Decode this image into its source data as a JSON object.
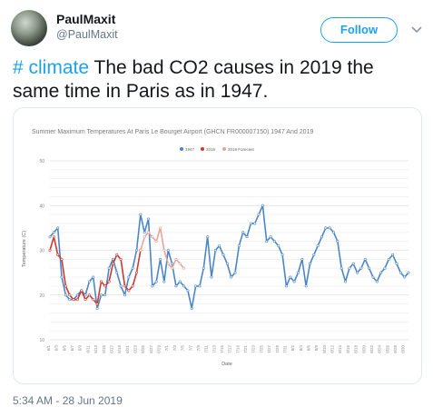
{
  "user": {
    "name": "PaulMaxit",
    "handle": "@PaulMaxit"
  },
  "follow_label": "Follow",
  "tweet": {
    "hashtag": "# climate",
    "text": " The bad CO2 causes in 2019 the same time in Paris as in 1947."
  },
  "timestamp": "5:34 AM - 28 Jun 2019",
  "icons": {
    "avatar": "profile-photo",
    "menu": "chevron-down-icon"
  },
  "colors": {
    "accent": "#1da1f2",
    "series_1947": "#4a86c8",
    "series_2019": "#cc3b2f",
    "series_forecast": "#e8a39b"
  },
  "chart_data": {
    "type": "line",
    "title": "Summer Maximum Temperatures At Paris Le Bourget Airport (GHCN FR000007150) 1947 And 2019",
    "xlabel": "Date",
    "ylabel": "Temperature (C)",
    "ylim": [
      10,
      50
    ],
    "yticks": [
      10,
      20,
      30,
      40,
      50
    ],
    "grid": true,
    "legend_position": "top-center",
    "xticks": [
      "6/1",
      "6/3",
      "6/5",
      "6/7",
      "6/9",
      "6/11",
      "6/13",
      "6/15",
      "6/17",
      "6/19",
      "6/21",
      "6/23",
      "6/25",
      "6/27",
      "6/29",
      "7/1",
      "7/3",
      "7/5",
      "7/7",
      "7/9",
      "7/11",
      "7/13",
      "7/15",
      "7/17",
      "7/19",
      "7/21",
      "7/23",
      "7/25",
      "7/27",
      "7/29",
      "7/31",
      "8/2",
      "8/4",
      "8/6",
      "8/8",
      "8/10",
      "8/12",
      "8/14",
      "8/16",
      "8/18",
      "8/20",
      "8/22",
      "8/24",
      "8/26",
      "8/28",
      "8/30"
    ],
    "series": [
      {
        "name": "1947",
        "color": "#4a86c8",
        "start_day": 0,
        "values": [
          33,
          34,
          35,
          24,
          20,
          19,
          19,
          20,
          21,
          20,
          23,
          24,
          17,
          20,
          20,
          26,
          28,
          25,
          22,
          20,
          24,
          26,
          30,
          38,
          34,
          37,
          22,
          23,
          28,
          23,
          30,
          27,
          22,
          23,
          22,
          21,
          17,
          22,
          22,
          26,
          33,
          24,
          30,
          31,
          29,
          27,
          24,
          25,
          31,
          34,
          33,
          36,
          36,
          38,
          40,
          32,
          33,
          32,
          31,
          29,
          22,
          24,
          23,
          25,
          28,
          22,
          27,
          29,
          31,
          33,
          35,
          35,
          34,
          32,
          26,
          23,
          26,
          27,
          25,
          26,
          28,
          26,
          24,
          23,
          25,
          26,
          28,
          29,
          27,
          25,
          24,
          25
        ]
      },
      {
        "name": "2019",
        "color": "#cc3b2f",
        "start_day": 0,
        "values": [
          30,
          33,
          29,
          28,
          22,
          20,
          19,
          19,
          21,
          19,
          20,
          19,
          18,
          23,
          22,
          23,
          27,
          29,
          28,
          22,
          21,
          22,
          25,
          30
        ]
      },
      {
        "name": "2019 Forecast",
        "color": "#e8a39b",
        "start_day": 23,
        "values": [
          30,
          33,
          34,
          33,
          32,
          35,
          30,
          27,
          26,
          28,
          27,
          26
        ]
      }
    ]
  }
}
